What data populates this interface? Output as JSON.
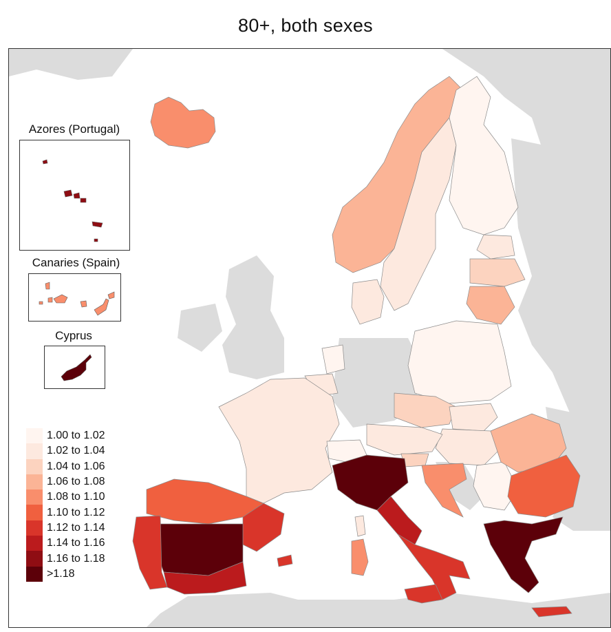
{
  "title": "80+, both sexes",
  "colors": {
    "background_land": "#dcdcdc",
    "sea": "#ffffff",
    "border": "#8a8a8a"
  },
  "insets": {
    "azores": {
      "label": "Azores (Portugal)",
      "class": "1.16 to 1.18"
    },
    "canaries": {
      "label": "Canaries (Spain)",
      "class": "1.08 to 1.10"
    },
    "cyprus": {
      "label": "Cyprus",
      "class": ">1.18"
    }
  },
  "legend": [
    {
      "label": "1.00 to 1.02",
      "color": "#fff5f0"
    },
    {
      "label": "1.02 to 1.04",
      "color": "#fde9df"
    },
    {
      "label": "1.04 to 1.06",
      "color": "#fcd3bf"
    },
    {
      "label": "1.06 to 1.08",
      "color": "#fbb496"
    },
    {
      "label": "1.08 to 1.10",
      "color": "#f98e6c"
    },
    {
      "label": "1.10 to 1.12",
      "color": "#f0603f"
    },
    {
      "label": "1.12 to 1.14",
      "color": "#d9352a"
    },
    {
      "label": "1.14 to 1.16",
      "color": "#bb1b1d"
    },
    {
      "label": "1.16 to 1.18",
      "color": "#8f0d13"
    },
    {
      "label": ">1.18",
      "color": "#5c0009"
    }
  ],
  "regions": [
    {
      "name": "Iceland",
      "class": "1.08 to 1.10"
    },
    {
      "name": "Norway",
      "class": "1.06 to 1.08"
    },
    {
      "name": "Sweden",
      "class": "1.02 to 1.04"
    },
    {
      "name": "Finland",
      "class": "1.00 to 1.02"
    },
    {
      "name": "Denmark",
      "class": "1.02 to 1.04"
    },
    {
      "name": "Estonia",
      "class": "1.02 to 1.04"
    },
    {
      "name": "Latvia",
      "class": "1.04 to 1.06"
    },
    {
      "name": "Lithuania",
      "class": "1.06 to 1.08"
    },
    {
      "name": "Poland",
      "class": "1.00 to 1.02"
    },
    {
      "name": "Czechia",
      "class": "1.04 to 1.06"
    },
    {
      "name": "Slovakia",
      "class": "1.02 to 1.04"
    },
    {
      "name": "Hungary",
      "class": "1.02 to 1.04"
    },
    {
      "name": "Austria",
      "class": "1.02 to 1.04"
    },
    {
      "name": "France",
      "class": "1.02 to 1.04"
    },
    {
      "name": "Belgium",
      "class": "1.02 to 1.04"
    },
    {
      "name": "Netherlands",
      "class": "1.00 to 1.02"
    },
    {
      "name": "Switzerland",
      "class": "1.00 to 1.02"
    },
    {
      "name": "Slovenia",
      "class": "1.04 to 1.06"
    },
    {
      "name": "Croatia",
      "class": "1.08 to 1.10"
    },
    {
      "name": "Serbia",
      "class": "1.00 to 1.02"
    },
    {
      "name": "Romania",
      "class": "1.06 to 1.08"
    },
    {
      "name": "Bulgaria",
      "class": "1.10 to 1.12"
    },
    {
      "name": "Greece",
      "class": ">1.18"
    },
    {
      "name": "North Italy",
      "class": ">1.18"
    },
    {
      "name": "Central Italy",
      "class": "1.14 to 1.16"
    },
    {
      "name": "South Italy",
      "class": "1.12 to 1.14"
    },
    {
      "name": "Sicily",
      "class": "1.12 to 1.14"
    },
    {
      "name": "Sardinia",
      "class": "1.08 to 1.10"
    },
    {
      "name": "Corsica",
      "class": "1.02 to 1.04"
    },
    {
      "name": "North Spain",
      "class": "1.10 to 1.12"
    },
    {
      "name": "East Spain",
      "class": "1.12 to 1.14"
    },
    {
      "name": "Central Spain",
      "class": ">1.18"
    },
    {
      "name": "South Spain",
      "class": "1.14 to 1.16"
    },
    {
      "name": "Portugal",
      "class": "1.12 to 1.14"
    },
    {
      "name": "Balearic Islands",
      "class": "1.12 to 1.14"
    },
    {
      "name": "Crete",
      "class": "1.12 to 1.14"
    }
  ]
}
